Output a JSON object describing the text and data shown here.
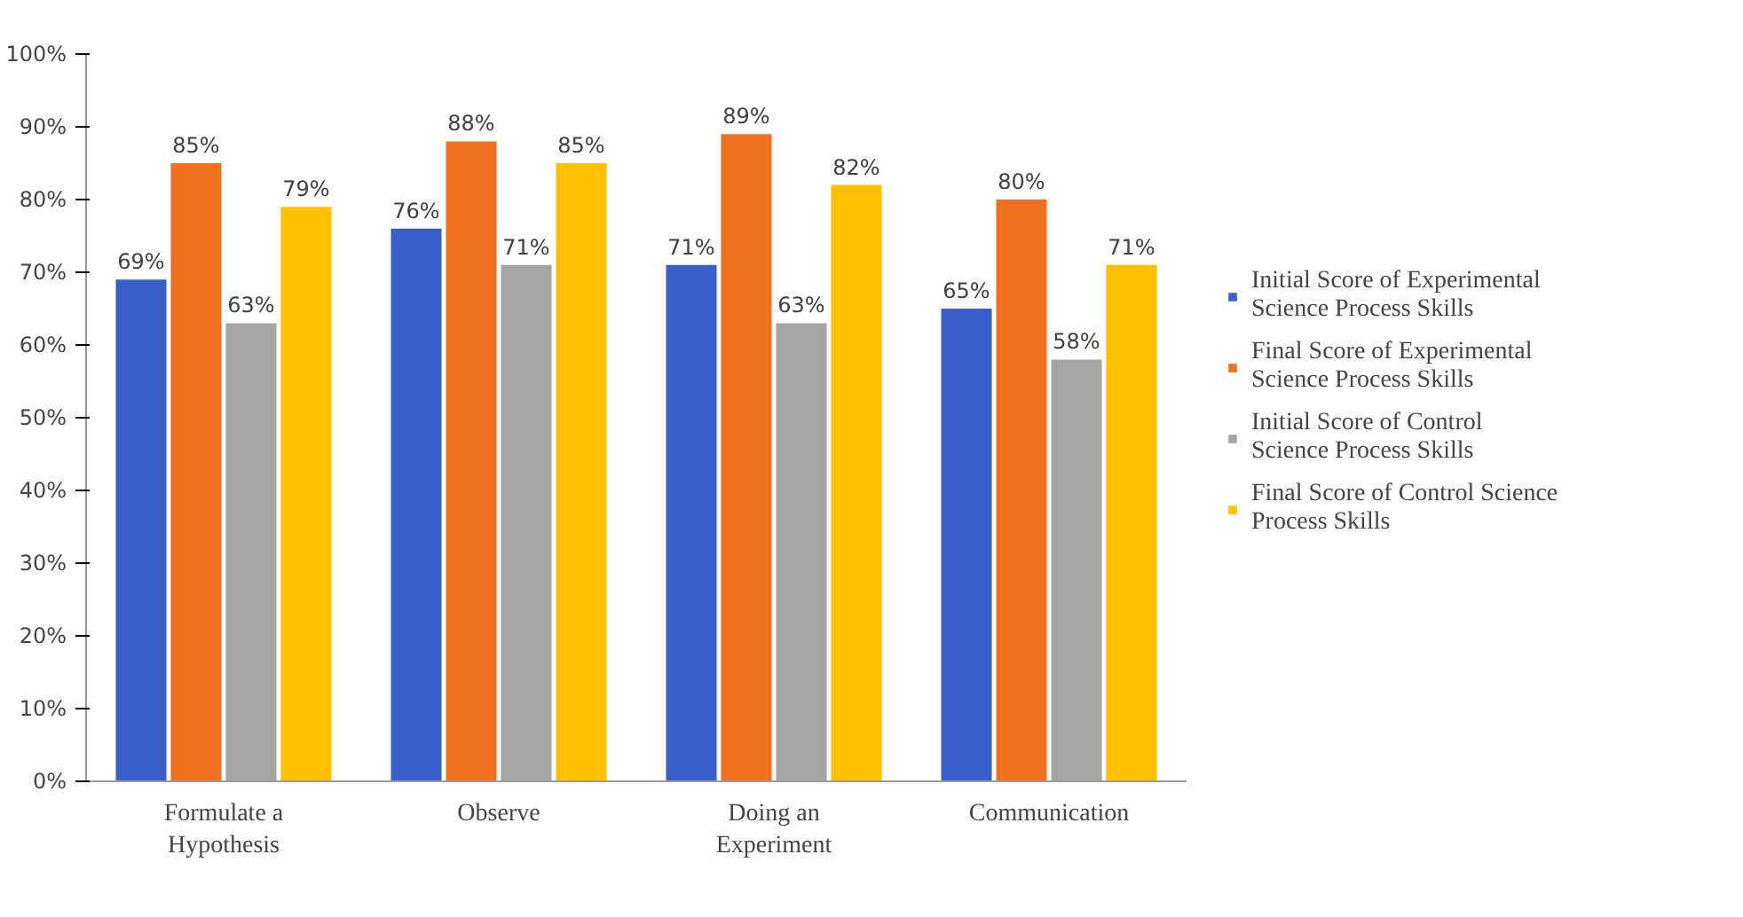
{
  "chart_data": {
    "type": "bar",
    "categories": [
      "Formulate a Hypothesis",
      "Observe",
      "Doing an Experiment",
      "Communication"
    ],
    "series": [
      {
        "name": "Initial Score of Experimental Science Process Skills",
        "color": "#3a5fc8",
        "values": [
          69,
          76,
          71,
          65
        ],
        "value_labels": [
          "69%",
          "76%",
          "71%",
          "65%"
        ]
      },
      {
        "name": "Final Score of Experimental Science Process Skills",
        "color": "#f07022",
        "values": [
          85,
          88,
          89,
          80
        ],
        "value_labels": [
          "85%",
          "88%",
          "89%",
          "80%"
        ]
      },
      {
        "name": "Initial Score of Control Science Process Skills",
        "color": "#a5a5a5",
        "values": [
          63,
          71,
          63,
          58
        ],
        "value_labels": [
          "63%",
          "71%",
          "63%",
          "58%"
        ]
      },
      {
        "name": "Final Score of Control Science Process Skills",
        "color": "#ffc000",
        "values": [
          79,
          85,
          82,
          71
        ],
        "value_labels": [
          "79%",
          "85%",
          "82%",
          "71%"
        ]
      }
    ],
    "ylim": [
      0,
      100
    ],
    "yticks": [
      {
        "value": 0,
        "label": "0%"
      },
      {
        "value": 10,
        "label": "10%"
      },
      {
        "value": 20,
        "label": "20%"
      },
      {
        "value": 30,
        "label": "30%"
      },
      {
        "value": 40,
        "label": "40%"
      },
      {
        "value": 50,
        "label": "50%"
      },
      {
        "value": 60,
        "label": "60%"
      },
      {
        "value": 70,
        "label": "70%"
      },
      {
        "value": 80,
        "label": "80%"
      },
      {
        "value": 90,
        "label": "90%"
      },
      {
        "value": 100,
        "label": "100%"
      }
    ],
    "grid": false,
    "legend": "right"
  }
}
